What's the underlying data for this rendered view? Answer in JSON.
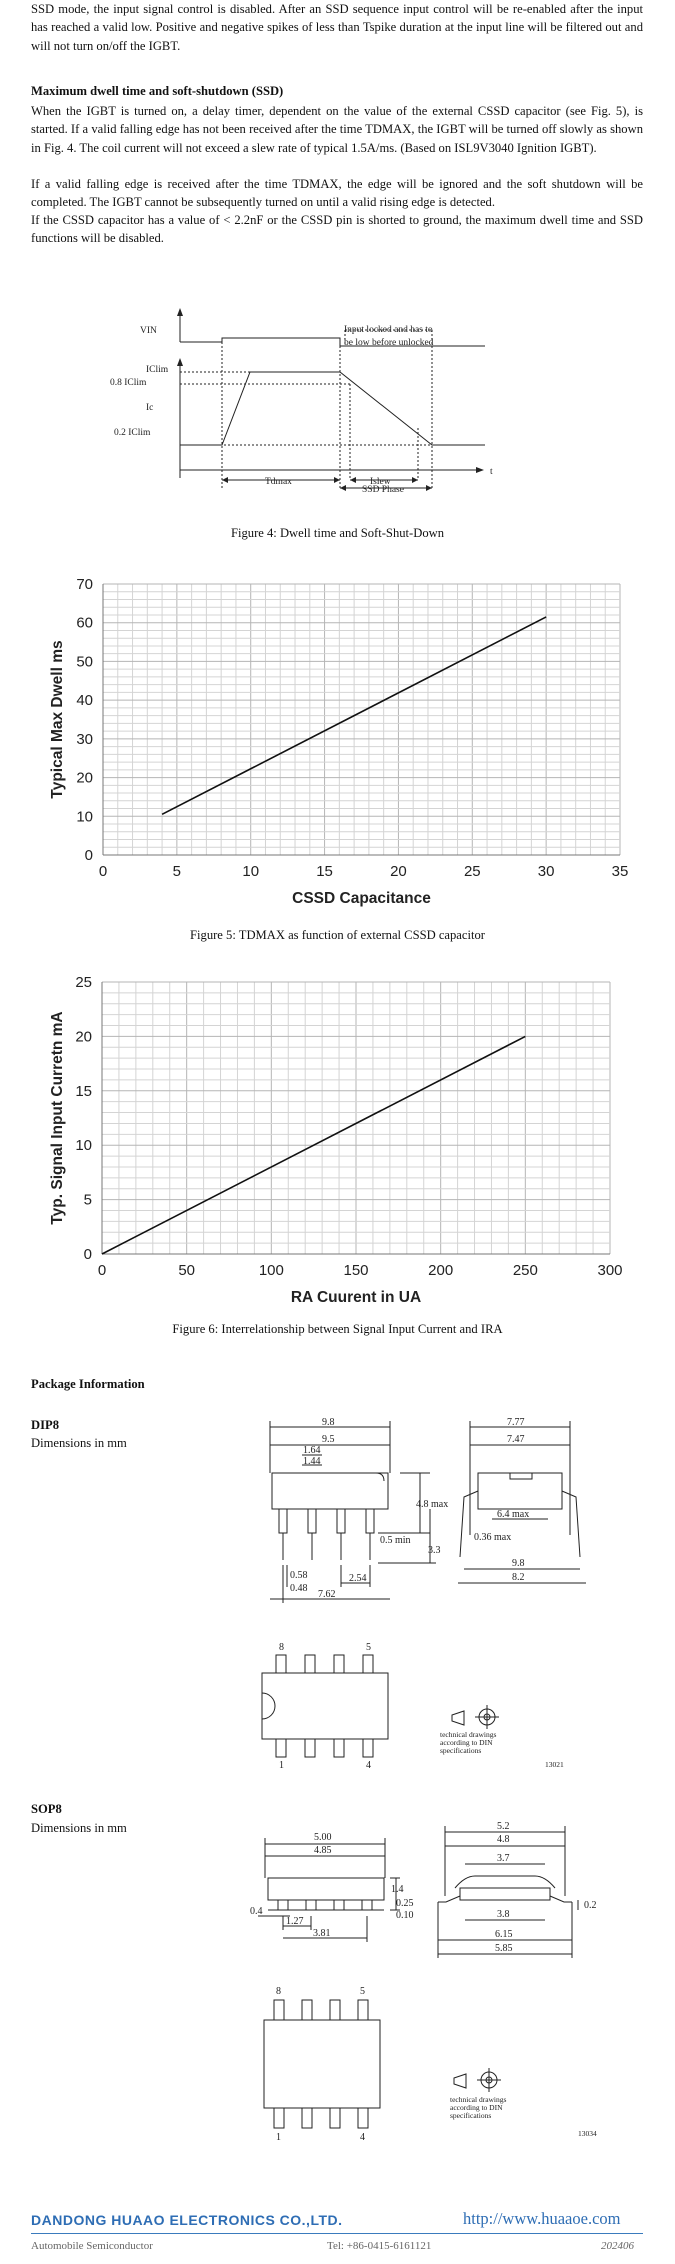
{
  "intro": "SSD mode, the input signal control is disabled. After an SSD sequence input control will be re-enabled after the input has reached a valid low. Positive and negative spikes of less than Tspike duration at the input line will be filtered out and will not turn on/off the IGBT.",
  "section_title": "Maximum dwell time and soft-shutdown (SSD)",
  "para1": "When the IGBT is turned on, a delay timer, dependent on the value of the external CSSD capacitor (see Fig. 5), is started. If a valid falling edge has not been received after the time TDMAX, the IGBT will be turned off slowly as shown in Fig. 4. The coil current will not exceed a slew rate of typical 1.5A/ms. (Based on ISL9V3040 Ignition IGBT).",
  "para2": "If a valid falling edge is received after the time TDMAX, the edge will be ignored and the soft shutdown will be completed. The IGBT cannot be subsequently turned on until a valid rising edge is detected.",
  "para3": "If the CSSD capacitor has a value of < 2.2nF or the CSSD pin is shorted to ground, the maximum dwell time and SSD functions will be disabled.",
  "fig4": {
    "caption": "Figure 4: Dwell time and Soft-Shut-Down",
    "label_vin": "VIN",
    "label_iclim": "IClim",
    "label_08": "0.8 IClim",
    "label_ic": "Ic",
    "label_02": "0.2 IClim",
    "label_t": "t",
    "note1": "Input locked and has to",
    "note2": "be low before unlocked",
    "label_tdmax": "Tdmax",
    "label_islew": "Islew",
    "label_ssd": "SSD Phase"
  },
  "fig5": {
    "caption": "Figure 5: TDMAX as function of external CSSD capacitor",
    "chart_data": {
      "type": "line",
      "x": [
        4,
        30
      ],
      "y": [
        10.5,
        61.5
      ],
      "xlabel": "CSSD Capacitance",
      "ylabel": "Typical Max Dwell   ms",
      "xlim": [
        0,
        35
      ],
      "ylim": [
        0,
        70
      ],
      "xticks": [
        "0",
        "5",
        "10",
        "15",
        "20",
        "25",
        "30",
        "35"
      ],
      "yticks": [
        "0",
        "10",
        "20",
        "30",
        "40",
        "50",
        "60",
        "70"
      ],
      "grid": true
    }
  },
  "fig6": {
    "caption": "Figure 6: Interrelationship between Signal Input Current and IRA",
    "chart_data": {
      "type": "line",
      "x": [
        0,
        250
      ],
      "y": [
        0,
        20
      ],
      "xlabel": "RA Cuurent in UA",
      "ylabel": "Typ.  Signal Input Curretn  mA",
      "xlim": [
        0,
        300
      ],
      "ylim": [
        0,
        25
      ],
      "xticks": [
        "0",
        "50",
        "100",
        "150",
        "200",
        "250",
        "300"
      ],
      "yticks": [
        "0",
        "5",
        "10",
        "15",
        "20",
        "25"
      ],
      "grid": true
    }
  },
  "package": {
    "title": "Package Information",
    "dip8": {
      "name": "DIP8",
      "units": "Dimensions in mm",
      "d_98": "9.8",
      "d_95": "9.5",
      "d_164": "1.64",
      "d_144": "1.44",
      "d_48max": "4.8 max",
      "d_33": "3.3",
      "d_05min": "0.5 min",
      "d_058": "0.58",
      "d_048": "0.48",
      "d_254": "2.54",
      "d_762": "7.62",
      "d_777": "7.77",
      "d_747": "7.47",
      "d_64max": "6.4 max",
      "d_036max": "0.36 max",
      "d_98b": "9.8",
      "d_82": "8.2",
      "pin8": "8",
      "pin5": "5",
      "pin1": "1",
      "pin4": "4",
      "note1": "technical drawings",
      "note2": "according to DIN",
      "note3": "specifications",
      "code": "13021"
    },
    "sop8": {
      "name": "SOP8",
      "units": "Dimensions in mm",
      "d_500": "5.00",
      "d_485": "4.85",
      "d_14": "1.4",
      "d_025": "0.25",
      "d_010": "0.10",
      "d_04": "0.4",
      "d_127": "1.27",
      "d_381": "3.81",
      "d_52": "5.2",
      "d_48": "4.8",
      "d_37": "3.7",
      "d_38": "3.8",
      "d_615": "6.15",
      "d_585": "5.85",
      "d_02": "0.2",
      "pin8": "8",
      "pin5": "5",
      "pin1": "1",
      "pin4": "4",
      "note1": "technical drawings",
      "note2": "according to DIN",
      "note3": "specifications",
      "code": "13034"
    }
  },
  "footer": {
    "company": "DANDONG HUAAO ELECTRONICS CO.,LTD.",
    "url": "http://www.huaaoe.com",
    "sub": "Automobile Semiconductor",
    "tel": "Tel: +86-0415-6161121",
    "date": "202406",
    "color": "#2e6db4"
  }
}
